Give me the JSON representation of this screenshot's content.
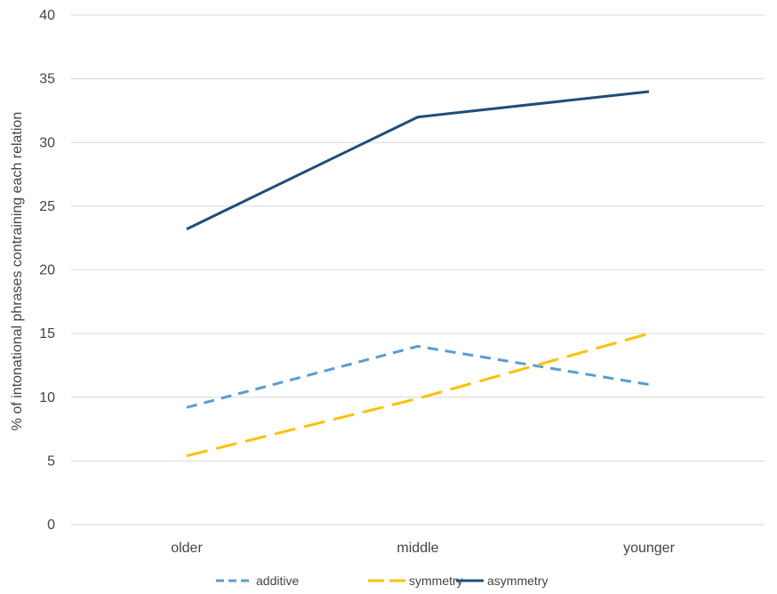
{
  "chart_data": {
    "type": "line",
    "title": "",
    "xlabel": "",
    "ylabel": "% of intonational phrases contraining each relation",
    "categories": [
      "older",
      "middle",
      "younger"
    ],
    "ylim": [
      0,
      40
    ],
    "yticks": [
      0,
      5,
      10,
      15,
      20,
      25,
      30,
      35,
      40
    ],
    "grid": true,
    "legend_position": "bottom",
    "series": [
      {
        "name": "additive",
        "values": [
          9.2,
          14,
          11
        ],
        "color": "#5B9BD5",
        "style": "dashed"
      },
      {
        "name": "symmetry",
        "values": [
          5.4,
          9.9,
          15
        ],
        "color": "#FFC000",
        "style": "long-dashed"
      },
      {
        "name": "asymmetry",
        "values": [
          23.2,
          32,
          34
        ],
        "color": "#1F4E79",
        "style": "solid"
      }
    ]
  }
}
